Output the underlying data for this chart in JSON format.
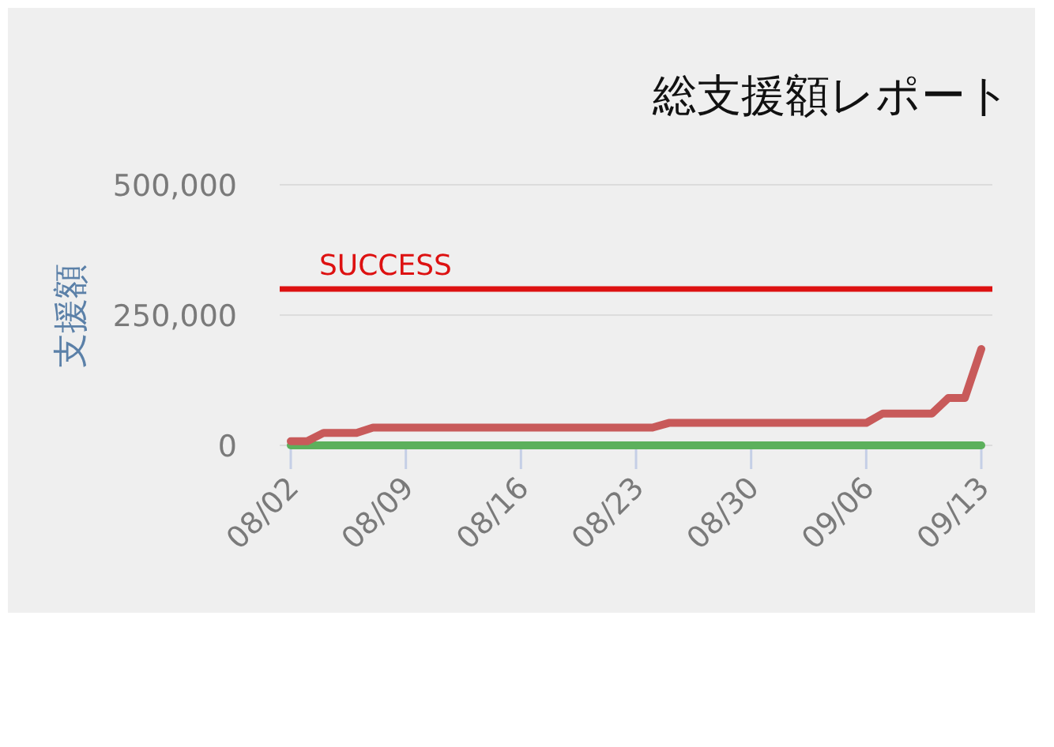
{
  "chart_data": {
    "type": "line",
    "title": "総支援額レポート",
    "ylabel": "支援額",
    "x": [
      "--08-02",
      "--08-03",
      "--08-04",
      "--08-06",
      "--08-07",
      "--08-24",
      "--08-25",
      "--09-06",
      "--09-07",
      "--09-10",
      "--09-11",
      "--09-12",
      "--09-13"
    ],
    "series": [
      {
        "color": "#c85a5a",
        "values": [
          8000,
          8000,
          24000,
          24000,
          34000,
          34000,
          43000,
          43000,
          61000,
          61000,
          91000,
          91000,
          185000
        ]
      },
      {
        "color": "#5cb05c",
        "x": [
          "--08-02",
          "--09-13"
        ],
        "values": [
          0,
          0
        ]
      }
    ],
    "xlim": [
      "--08-02",
      "--09-13"
    ],
    "xticks": [
      {
        "value": "--08-02",
        "label": "08/02"
      },
      {
        "value": "--08-09",
        "label": "08/09"
      },
      {
        "value": "--08-16",
        "label": "08/16"
      },
      {
        "value": "--08-23",
        "label": "08/23"
      },
      {
        "value": "--08-30",
        "label": "08/30"
      },
      {
        "value": "--09-06",
        "label": "09/06"
      },
      {
        "value": "--09-13",
        "label": "09/13"
      }
    ],
    "ylim": [
      0,
      500000
    ],
    "yticks": [
      {
        "value": 0,
        "label": "0"
      },
      {
        "value": 250000,
        "label": "250,000"
      },
      {
        "value": 500000,
        "label": "500,000"
      }
    ],
    "ref_lines": [
      {
        "axis": "y",
        "value": 300000,
        "label": "SUCCESS",
        "color": "#dd1111"
      }
    ],
    "grid": "y",
    "line_style": "solid",
    "marker": "none"
  }
}
